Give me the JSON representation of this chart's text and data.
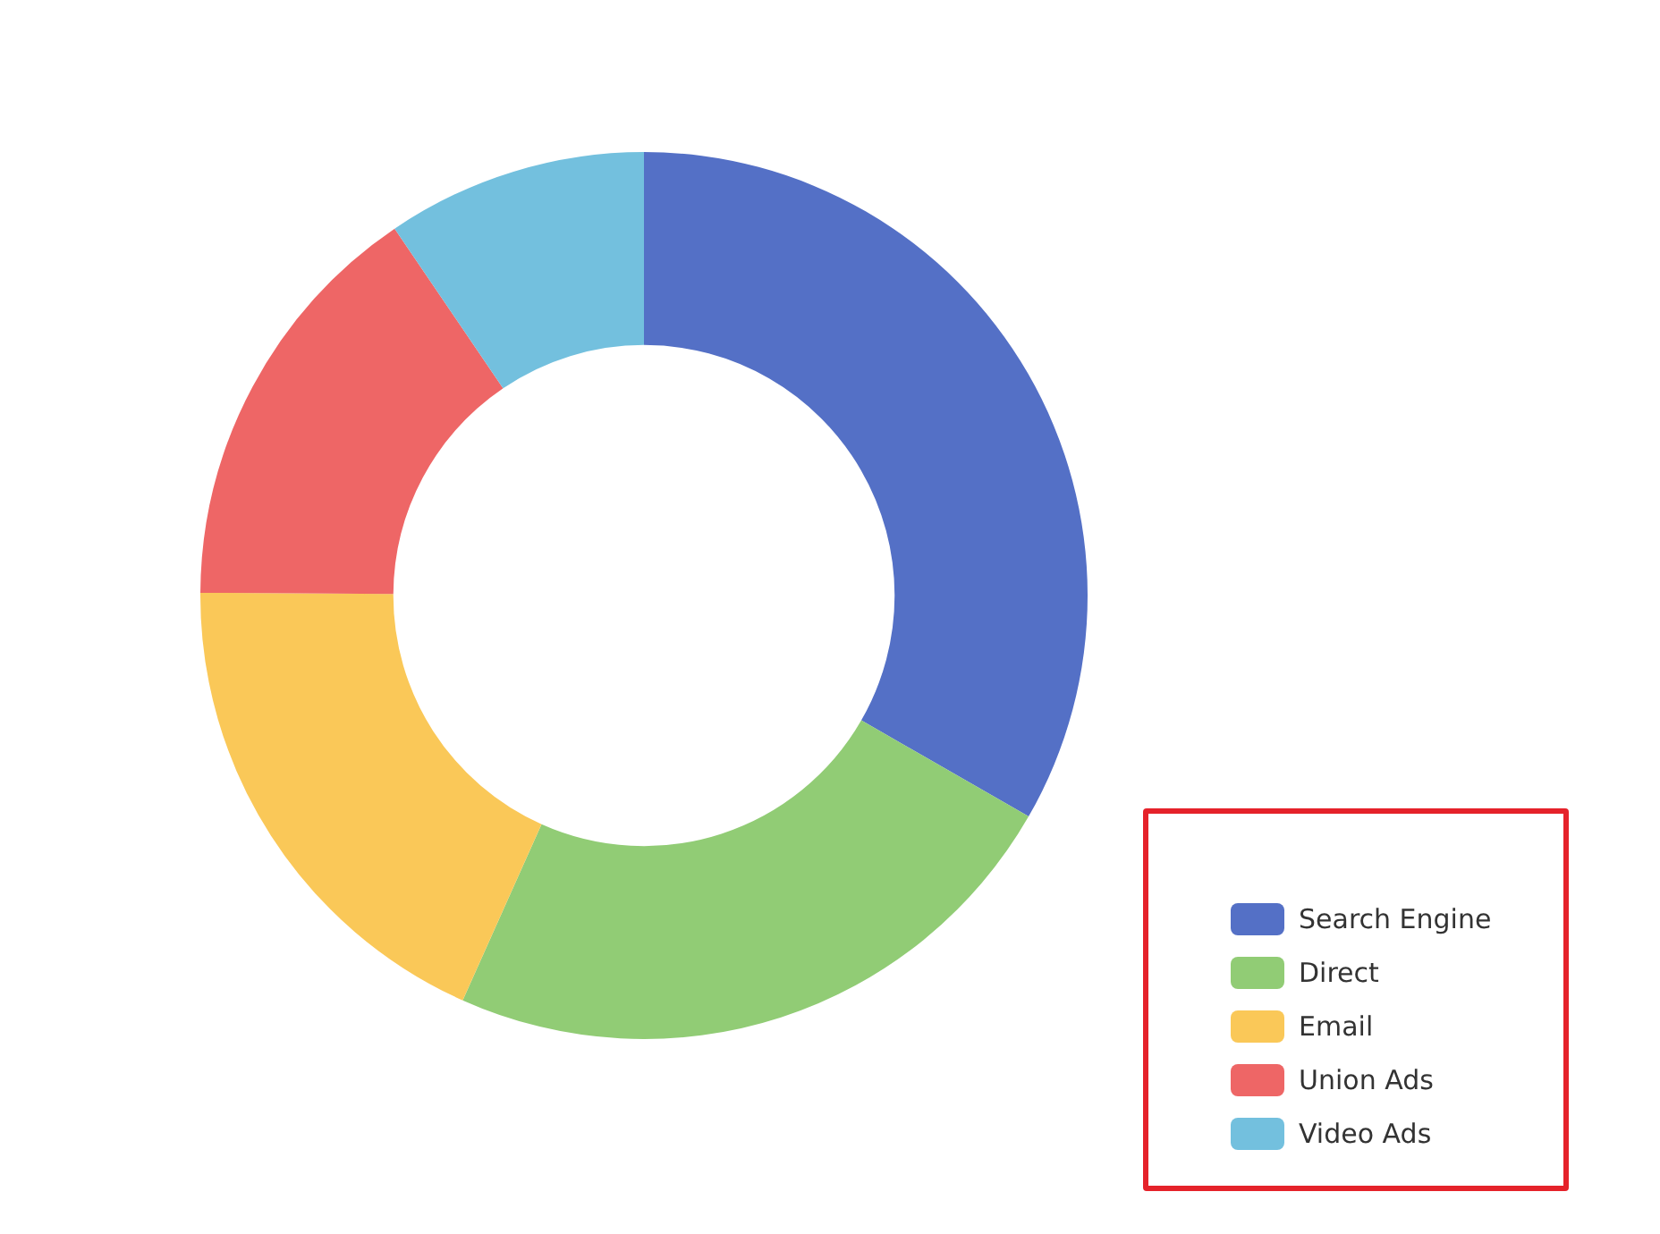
{
  "chart_data": {
    "type": "donut",
    "categories": [
      "Search Engine",
      "Direct",
      "Email",
      "Union Ads",
      "Video Ads"
    ],
    "values": [
      33.3,
      23.4,
      18.4,
      15.4,
      9.5
    ],
    "colors": [
      "#5470c6",
      "#91cc75",
      "#fac858",
      "#ee6666",
      "#73c0de"
    ],
    "legend": "bottom right"
  }
}
